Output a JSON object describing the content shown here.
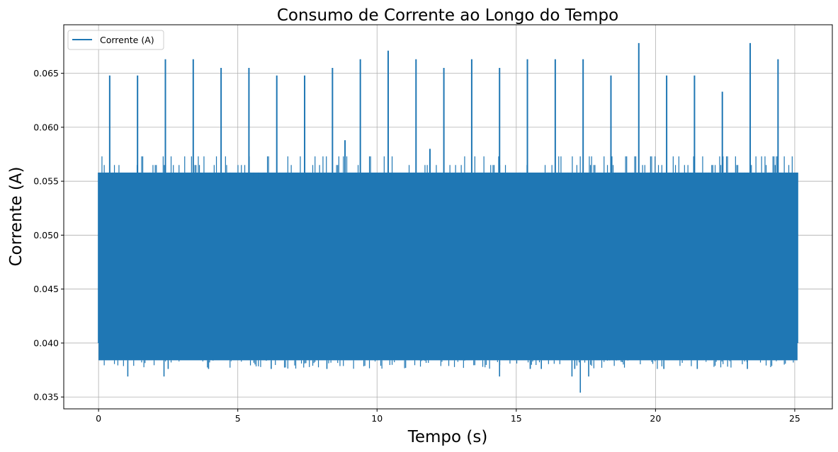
{
  "chart_data": {
    "type": "line",
    "title": "Consumo de Corrente ao Longo do Tempo",
    "xlabel": "Tempo (s)",
    "ylabel": "Corrente (A)",
    "xlim": [
      -1.25,
      26.35
    ],
    "ylim": [
      0.0339,
      0.0695
    ],
    "xticks": [
      0,
      5,
      10,
      15,
      20,
      25
    ],
    "yticks": [
      0.035,
      0.04,
      0.045,
      0.05,
      0.055,
      0.06,
      0.065
    ],
    "xtick_labels": [
      "0",
      "5",
      "10",
      "15",
      "20",
      "25"
    ],
    "ytick_labels": [
      "0.035",
      "0.040",
      "0.045",
      "0.050",
      "0.055",
      "0.060",
      "0.065"
    ],
    "grid": true,
    "legend": {
      "position": "top-left",
      "entries": [
        "Corrente (A)"
      ]
    },
    "series": [
      {
        "name": "Corrente (A)",
        "color": "#1f77b4",
        "x_range": [
          0,
          25.1
        ],
        "band_low": 0.0384,
        "band_high": 0.0558,
        "periodic_spikes": [
          {
            "x": 0.4,
            "y": 0.0648
          },
          {
            "x": 1.4,
            "y": 0.0648
          },
          {
            "x": 2.4,
            "y": 0.0663
          },
          {
            "x": 3.4,
            "y": 0.0663
          },
          {
            "x": 4.4,
            "y": 0.0655
          },
          {
            "x": 5.4,
            "y": 0.0655
          },
          {
            "x": 6.4,
            "y": 0.0648
          },
          {
            "x": 7.4,
            "y": 0.0648
          },
          {
            "x": 8.4,
            "y": 0.0655
          },
          {
            "x": 9.4,
            "y": 0.0663
          },
          {
            "x": 10.4,
            "y": 0.0671
          },
          {
            "x": 11.4,
            "y": 0.0663
          },
          {
            "x": 12.4,
            "y": 0.0655
          },
          {
            "x": 13.4,
            "y": 0.0663
          },
          {
            "x": 14.4,
            "y": 0.0655
          },
          {
            "x": 15.4,
            "y": 0.0663
          },
          {
            "x": 16.4,
            "y": 0.0663
          },
          {
            "x": 17.4,
            "y": 0.0663
          },
          {
            "x": 18.4,
            "y": 0.0648
          },
          {
            "x": 19.4,
            "y": 0.0678
          },
          {
            "x": 20.4,
            "y": 0.0648
          },
          {
            "x": 21.4,
            "y": 0.0648
          },
          {
            "x": 22.4,
            "y": 0.0633
          },
          {
            "x": 23.4,
            "y": 0.0678
          },
          {
            "x": 24.4,
            "y": 0.0663
          }
        ],
        "other_spikes": [
          {
            "x": 8.85,
            "y": 0.0588
          },
          {
            "x": 11.9,
            "y": 0.058
          }
        ],
        "dips": [
          {
            "x": 1.05,
            "y": 0.0369
          },
          {
            "x": 2.35,
            "y": 0.0369
          },
          {
            "x": 2.5,
            "y": 0.0376
          },
          {
            "x": 3.95,
            "y": 0.0376
          },
          {
            "x": 6.2,
            "y": 0.0376
          },
          {
            "x": 8.2,
            "y": 0.0376
          },
          {
            "x": 14.4,
            "y": 0.0369
          },
          {
            "x": 15.5,
            "y": 0.0376
          },
          {
            "x": 15.9,
            "y": 0.0376
          },
          {
            "x": 17.0,
            "y": 0.0369
          },
          {
            "x": 17.1,
            "y": 0.0376
          },
          {
            "x": 17.3,
            "y": 0.0354
          },
          {
            "x": 17.6,
            "y": 0.0369
          },
          {
            "x": 20.3,
            "y": 0.0376
          },
          {
            "x": 21.5,
            "y": 0.0376
          },
          {
            "x": 23.3,
            "y": 0.0376
          }
        ]
      }
    ]
  }
}
